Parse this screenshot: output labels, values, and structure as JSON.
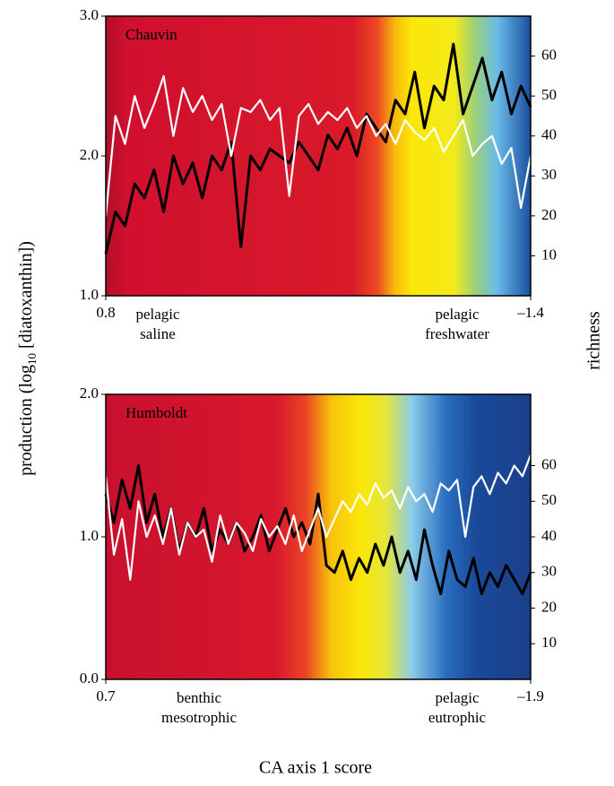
{
  "chart_data": [
    {
      "type": "line",
      "title": "Chauvin",
      "ylabel": [
        "production (log",
        "10",
        " [diatoxanthin])"
      ],
      "y2label": "richness",
      "xlabel": "CA axis 1 score",
      "xlim": [
        0.8,
        -1.4
      ],
      "xticks": [
        0.8,
        {
          "value": -1.4,
          "label": "–1.4"
        }
      ],
      "ylim": [
        1,
        3
      ],
      "yticks": [
        {
          "value": 1,
          "label": "1.0"
        },
        {
          "value": 2,
          "label": "2.0"
        },
        {
          "value": 3,
          "label": "3.0"
        }
      ],
      "y2lim": [
        0,
        70
      ],
      "y2ticks": [
        10,
        20,
        30,
        40,
        50,
        60
      ],
      "annotations": [
        [
          "pelagic",
          "saline"
        ],
        [
          "pelagic",
          "freshwater"
        ]
      ],
      "x": [
        0.8,
        0.75,
        0.7,
        0.65,
        0.6,
        0.55,
        0.5,
        0.45,
        0.4,
        0.35,
        0.3,
        0.25,
        0.2,
        0.15,
        0.1,
        0.05,
        0,
        -0.05,
        -0.1,
        -0.15,
        -0.2,
        -0.25,
        -0.3,
        -0.35,
        -0.4,
        -0.45,
        -0.5,
        -0.55,
        -0.6,
        -0.65,
        -0.7,
        -0.75,
        -0.8,
        -0.85,
        -0.9,
        -0.95,
        -1,
        -1.05,
        -1.1,
        -1.15,
        -1.2,
        -1.25,
        -1.3,
        -1.35,
        -1.4
      ],
      "series": [
        {
          "color": "#000000",
          "values": [
            1.3,
            1.6,
            1.5,
            1.8,
            1.7,
            1.9,
            1.6,
            2.0,
            1.8,
            1.95,
            1.7,
            2.0,
            1.9,
            2.1,
            1.35,
            2.0,
            1.9,
            2.05,
            2.0,
            1.95,
            2.1,
            2.0,
            1.9,
            2.15,
            2.05,
            2.2,
            2.0,
            2.3,
            2.2,
            2.1,
            2.4,
            2.3,
            2.6,
            2.2,
            2.5,
            2.4,
            2.8,
            2.3,
            2.5,
            2.7,
            2.4,
            2.6,
            2.3,
            2.5,
            2.35
          ]
        },
        {
          "color": "#ffffff",
          "axis": "y2",
          "values": [
            20,
            45,
            38,
            50,
            42,
            48,
            55,
            40,
            52,
            46,
            50,
            44,
            48,
            35,
            47,
            46,
            49,
            44,
            47,
            25,
            45,
            48,
            43,
            46,
            44,
            47,
            42,
            45,
            40,
            43,
            38,
            44,
            41,
            39,
            42,
            36,
            40,
            44,
            35,
            38,
            40,
            33,
            37,
            22,
            35
          ]
        }
      ]
    },
    {
      "type": "line",
      "title": "Humboldt",
      "xlim": [
        0.7,
        -1.9
      ],
      "xticks": [
        0.7,
        {
          "value": -1.9,
          "label": "–1.9"
        }
      ],
      "ylim": [
        0,
        2
      ],
      "yticks": [
        {
          "value": 0,
          "label": "0.0"
        },
        {
          "value": 1,
          "label": "1.0"
        },
        {
          "value": 2,
          "label": "2.0"
        }
      ],
      "y2lim": [
        0,
        80
      ],
      "y2ticks": [
        10,
        20,
        30,
        40,
        50,
        60
      ],
      "annotations": [
        [
          "benthic",
          "mesotrophic"
        ],
        [
          "pelagic",
          "eutrophic"
        ]
      ],
      "x": [
        0.7,
        0.65,
        0.6,
        0.55,
        0.5,
        0.45,
        0.4,
        0.35,
        0.3,
        0.25,
        0.2,
        0.15,
        0.1,
        0.05,
        0,
        -0.05,
        -0.1,
        -0.15,
        -0.2,
        -0.25,
        -0.3,
        -0.35,
        -0.4,
        -0.45,
        -0.5,
        -0.55,
        -0.6,
        -0.65,
        -0.7,
        -0.75,
        -0.8,
        -0.85,
        -0.9,
        -0.95,
        -1,
        -1.05,
        -1.1,
        -1.15,
        -1.2,
        -1.25,
        -1.3,
        -1.35,
        -1.4,
        -1.45,
        -1.5,
        -1.55,
        -1.6,
        -1.65,
        -1.7,
        -1.75,
        -1.8,
        -1.85,
        -1.9
      ],
      "series": [
        {
          "color": "#000000",
          "values": [
            1.3,
            1.1,
            1.4,
            1.2,
            1.5,
            1.1,
            1.3,
            1.0,
            1.2,
            0.9,
            1.1,
            1.0,
            1.2,
            0.9,
            1.05,
            0.95,
            1.1,
            0.9,
            1.0,
            1.15,
            0.9,
            1.05,
            1.2,
            1.0,
            1.1,
            0.95,
            1.3,
            0.8,
            0.75,
            0.9,
            0.7,
            0.85,
            0.75,
            0.95,
            0.8,
            1.0,
            0.75,
            0.9,
            0.7,
            1.05,
            0.8,
            0.6,
            0.9,
            0.7,
            0.65,
            0.85,
            0.6,
            0.75,
            0.65,
            0.8,
            0.7,
            0.6,
            0.75
          ]
        },
        {
          "color": "#ffffff",
          "axis": "y2",
          "values": [
            57,
            35,
            45,
            28,
            50,
            40,
            46,
            38,
            48,
            35,
            44,
            40,
            42,
            33,
            46,
            38,
            44,
            41,
            36,
            45,
            40,
            43,
            38,
            46,
            36,
            42,
            48,
            40,
            45,
            50,
            47,
            52,
            49,
            55,
            51,
            53,
            48,
            54,
            50,
            52,
            47,
            55,
            53,
            56,
            40,
            54,
            57,
            52,
            58,
            55,
            60,
            57,
            63
          ]
        }
      ]
    }
  ]
}
